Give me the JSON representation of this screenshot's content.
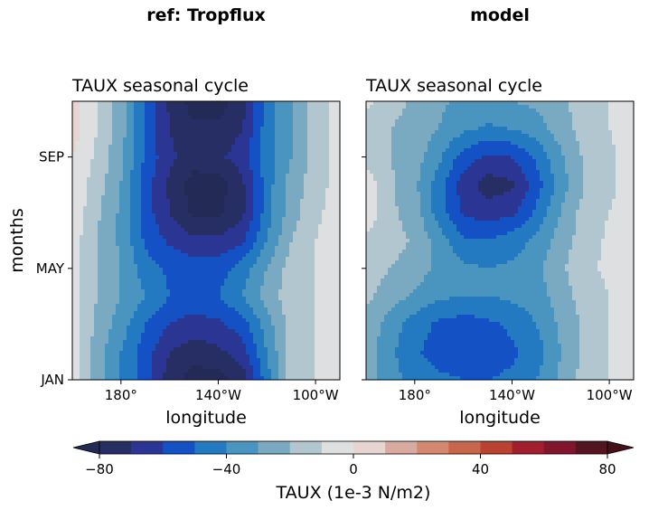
{
  "figure": {
    "left_header": "ref: Tropflux",
    "right_header": "model"
  },
  "chart_data": [
    {
      "type": "heatmap",
      "panel": "ref",
      "title": "TAUX seasonal cycle",
      "xlabel": "longitude",
      "ylabel": "months",
      "x": [
        160,
        170,
        180,
        190,
        200,
        210,
        220,
        230,
        240,
        250,
        260,
        270
      ],
      "x_tick_values": [
        180,
        220,
        260
      ],
      "x_tick_labels": [
        "180°",
        "140°W",
        "100°W"
      ],
      "y": [
        1,
        2,
        3,
        4,
        5,
        6,
        7,
        8,
        9,
        10,
        11
      ],
      "y_tick_values": [
        1,
        5,
        9
      ],
      "y_tick_labels": [
        "JAN",
        "MAY",
        "SEP"
      ],
      "values": [
        [
          -5,
          -25,
          -40,
          -55,
          -75,
          -85,
          -85,
          -75,
          -45,
          -15,
          -10,
          -5
        ],
        [
          -5,
          -25,
          -40,
          -55,
          -70,
          -75,
          -72,
          -65,
          -40,
          -15,
          -10,
          -5
        ],
        [
          -5,
          -22,
          -35,
          -50,
          -60,
          -65,
          -62,
          -55,
          -35,
          -15,
          -10,
          -5
        ],
        [
          -5,
          -20,
          -30,
          -40,
          -50,
          -52,
          -50,
          -40,
          -25,
          -15,
          -10,
          -5
        ],
        [
          -5,
          -20,
          -30,
          -45,
          -52,
          -55,
          -55,
          -45,
          -30,
          -15,
          -10,
          -5
        ],
        [
          -5,
          -20,
          -32,
          -52,
          -62,
          -68,
          -68,
          -62,
          -40,
          -20,
          -10,
          -5
        ],
        [
          -2,
          -18,
          -32,
          -55,
          -70,
          -82,
          -82,
          -72,
          -45,
          -25,
          -12,
          -5
        ],
        [
          -2,
          -15,
          -30,
          -55,
          -72,
          -85,
          -85,
          -72,
          -45,
          -25,
          -15,
          -5
        ],
        [
          0,
          -12,
          -28,
          -52,
          -68,
          -75,
          -72,
          -65,
          -45,
          -30,
          -15,
          -5
        ],
        [
          5,
          -10,
          -25,
          -52,
          -70,
          -78,
          -78,
          -70,
          -45,
          -30,
          -15,
          -5
        ],
        [
          5,
          -10,
          -25,
          -50,
          -72,
          -85,
          -85,
          -75,
          -45,
          -30,
          -15,
          -5
        ]
      ]
    },
    {
      "type": "heatmap",
      "panel": "model",
      "title": "TAUX seasonal cycle",
      "xlabel": "longitude",
      "x": [
        160,
        170,
        180,
        190,
        200,
        210,
        220,
        230,
        240,
        250,
        260,
        270
      ],
      "x_tick_values": [
        180,
        220,
        260
      ],
      "x_tick_labels": [
        "180°",
        "140°W",
        "100°W"
      ],
      "y": [
        1,
        2,
        3,
        4,
        5,
        6,
        7,
        8,
        9,
        10,
        11
      ],
      "y_tick_values": [
        1,
        5,
        9
      ],
      "y_tick_labels": [
        "",
        "",
        ""
      ],
      "values": [
        [
          -25,
          -35,
          -45,
          -48,
          -50,
          -50,
          -48,
          -40,
          -28,
          -15,
          -10,
          -5
        ],
        [
          -25,
          -38,
          -48,
          -55,
          -55,
          -55,
          -52,
          -45,
          -30,
          -18,
          -10,
          -5
        ],
        [
          -22,
          -35,
          -45,
          -52,
          -55,
          -52,
          -48,
          -40,
          -28,
          -18,
          -10,
          -5
        ],
        [
          -18,
          -25,
          -32,
          -38,
          -40,
          -40,
          -38,
          -35,
          -25,
          -15,
          -10,
          -5
        ],
        [
          -15,
          -20,
          -25,
          -32,
          -38,
          -40,
          -38,
          -32,
          -22,
          -12,
          -8,
          -5
        ],
        [
          -12,
          -15,
          -22,
          -35,
          -48,
          -50,
          -45,
          -38,
          -25,
          -15,
          -8,
          -5
        ],
        [
          -3,
          -18,
          -25,
          -45,
          -62,
          -65,
          -62,
          -48,
          -30,
          -15,
          -10,
          -5
        ],
        [
          -3,
          -18,
          -28,
          -45,
          -65,
          -75,
          -72,
          -55,
          -35,
          -20,
          -12,
          -5
        ],
        [
          -15,
          -20,
          -25,
          -38,
          -55,
          -62,
          -60,
          -48,
          -32,
          -18,
          -12,
          -5
        ],
        [
          -15,
          -20,
          -25,
          -30,
          -38,
          -42,
          -40,
          -35,
          -25,
          -15,
          -10,
          -5
        ],
        [
          -8,
          -15,
          -22,
          -28,
          -32,
          -32,
          -30,
          -28,
          -22,
          -15,
          -10,
          -5
        ]
      ]
    }
  ],
  "colorbar": {
    "label": "TAUX (1e-3 N/m2)",
    "min": -80,
    "max": 80,
    "step": 10,
    "extend": "both",
    "tick_values": [
      -80,
      -40,
      0,
      40,
      80
    ],
    "tick_labels": [
      "−80",
      "−40",
      "0",
      "40",
      "80"
    ],
    "colors": [
      "#262e63",
      "#2b3594",
      "#1451c4",
      "#247ac0",
      "#4a95bf",
      "#79aac1",
      "#b2c6d0",
      "#dddfe1",
      "#e6d5d1",
      "#d9aba0",
      "#d3886f",
      "#c7664b",
      "#ba4230",
      "#a11f2c",
      "#80152d",
      "#531521"
    ],
    "under_color": "#222a55",
    "over_color": "#461019"
  }
}
